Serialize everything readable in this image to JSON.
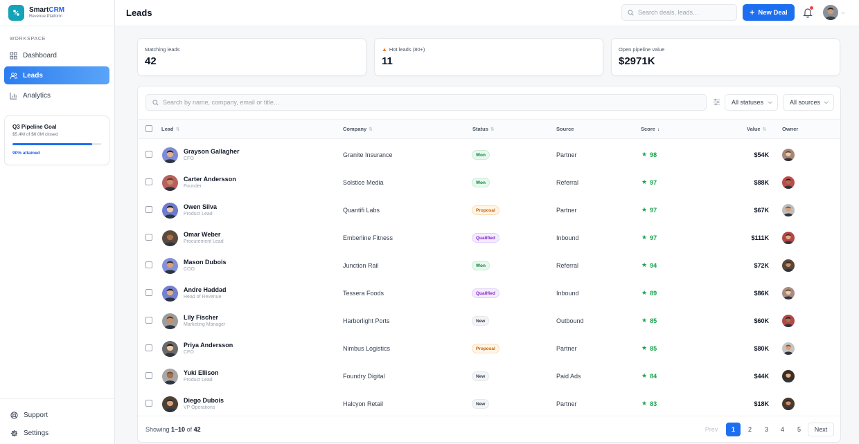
{
  "brand": {
    "name_a": "Smart",
    "name_b": "CRM",
    "subtitle": "Revenue Platform"
  },
  "sidebar": {
    "section_label": "WORKSPACE",
    "items": [
      {
        "label": "Dashboard",
        "icon": "grid-icon",
        "active": false
      },
      {
        "label": "Leads",
        "icon": "users-icon",
        "active": true
      },
      {
        "label": "Analytics",
        "icon": "bar-chart-icon",
        "active": false
      }
    ],
    "goal": {
      "title": "Q3 Pipeline Goal",
      "subtitle": "$5.4M of $6.0M closed",
      "progress": 0.9,
      "attained": "90% attained"
    },
    "bottom": [
      {
        "label": "Support",
        "icon": "life-ring-icon"
      },
      {
        "label": "Settings",
        "icon": "gear-icon"
      }
    ]
  },
  "topbar": {
    "title": "Leads",
    "search_placeholder": "Search deals, leads…",
    "new_deal_label": "New Deal"
  },
  "stats": [
    {
      "label": "Matching leads",
      "value": "42"
    },
    {
      "label": "Hot leads (80+)",
      "value": "11"
    },
    {
      "label": "Open pipeline value",
      "value": "$2971K"
    }
  ],
  "filters": {
    "search_placeholder": "Search by name, company, email or title…",
    "status": "All statuses",
    "source": "All sources"
  },
  "table": {
    "headers": {
      "lead": "Lead",
      "company": "Company",
      "status": "Status",
      "source": "Source",
      "score": "Score",
      "value": "Value",
      "owner": "Owner"
    },
    "rows": [
      {
        "name": "Grayson Gallagher",
        "title": "CFO",
        "company": "Granite Insurance",
        "status": "Won",
        "status_type": "won",
        "source": "Partner",
        "score": "98",
        "value": "$54K"
      },
      {
        "name": "Carter Andersson",
        "title": "Founder",
        "company": "Solstice Media",
        "status": "Won",
        "status_type": "won",
        "source": "Referral",
        "score": "97",
        "value": "$88K"
      },
      {
        "name": "Owen Silva",
        "title": "Product Lead",
        "company": "Quantifi Labs",
        "status": "Proposal",
        "status_type": "proposal",
        "source": "Partner",
        "score": "97",
        "value": "$67K"
      },
      {
        "name": "Omar Weber",
        "title": "Procurement Lead",
        "company": "Emberline Fitness",
        "status": "Qualified",
        "status_type": "qualified",
        "source": "Inbound",
        "score": "97",
        "value": "$111K"
      },
      {
        "name": "Mason Dubois",
        "title": "COO",
        "company": "Junction Rail",
        "status": "Won",
        "status_type": "won",
        "source": "Referral",
        "score": "94",
        "value": "$72K"
      },
      {
        "name": "Andre Haddad",
        "title": "Head of Revenue",
        "company": "Tessera Foods",
        "status": "Qualified",
        "status_type": "qualified",
        "source": "Inbound",
        "score": "89",
        "value": "$86K"
      },
      {
        "name": "Lily Fischer",
        "title": "Marketing Manager",
        "company": "Harborlight Ports",
        "status": "New",
        "status_type": "new",
        "source": "Outbound",
        "score": "85",
        "value": "$60K"
      },
      {
        "name": "Priya Andersson",
        "title": "CFO",
        "company": "Nimbus Logistics",
        "status": "Proposal",
        "status_type": "proposal",
        "source": "Partner",
        "score": "85",
        "value": "$80K"
      },
      {
        "name": "Yuki Ellison",
        "title": "Product Lead",
        "company": "Foundry Digital",
        "status": "New",
        "status_type": "new",
        "source": "Paid Ads",
        "score": "84",
        "value": "$44K"
      },
      {
        "name": "Diego Dubois",
        "title": "VP Operations",
        "company": "Halcyon Retail",
        "status": "New",
        "status_type": "new",
        "source": "Partner",
        "score": "83",
        "value": "$18K"
      }
    ]
  },
  "footer": {
    "showing_prefix": "Showing ",
    "range": "1–10",
    "of": " of ",
    "total": "42"
  },
  "pagination": {
    "prev": "Prev",
    "pages": [
      "1",
      "2",
      "3",
      "4",
      "5"
    ],
    "next": "Next"
  }
}
